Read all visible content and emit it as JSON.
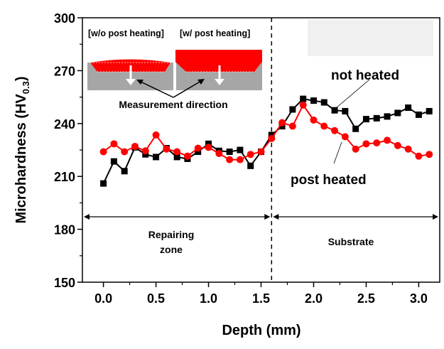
{
  "chart_data": {
    "type": "line",
    "title": "",
    "xlabel": "Depth (mm)",
    "ylabel_main": "Microhardness (HV",
    "ylabel_sub": "0.3",
    "ylabel_close": ")",
    "xlim": [
      -0.2,
      3.2
    ],
    "ylim": [
      150,
      300
    ],
    "xticks": [
      "0.0",
      "0.5",
      "1.0",
      "1.5",
      "2.0",
      "2.5",
      "3.0"
    ],
    "yticks": [
      "150",
      "180",
      "210",
      "240",
      "270",
      "300"
    ],
    "grid": false,
    "x": [
      0.0,
      0.1,
      0.2,
      0.3,
      0.4,
      0.5,
      0.6,
      0.7,
      0.8,
      0.9,
      1.0,
      1.1,
      1.2,
      1.3,
      1.4,
      1.5,
      1.6,
      1.7,
      1.8,
      1.9,
      2.0,
      2.1,
      2.2,
      2.3,
      2.4,
      2.5,
      2.6,
      2.7,
      2.8,
      2.9,
      3.0,
      3.1
    ],
    "series": [
      {
        "name": "not heated",
        "color": "#000000",
        "marker": "square",
        "values": [
          206,
          218.5,
          213,
          226.5,
          222.5,
          221,
          226,
          221,
          220,
          224,
          228.5,
          224.5,
          224,
          225,
          216,
          224,
          233.5,
          238.5,
          248,
          254,
          253,
          252,
          247.5,
          247,
          237,
          242.5,
          243,
          244,
          246,
          249,
          245,
          247
        ]
      },
      {
        "name": "post heated",
        "color": "#ff0000",
        "marker": "circle",
        "values": [
          224,
          228.5,
          224,
          227,
          224.5,
          233.5,
          225.5,
          224,
          221.5,
          226,
          226.5,
          223,
          219.5,
          219.5,
          222.5,
          224,
          231.5,
          240.5,
          238.5,
          250.5,
          242,
          238.5,
          236,
          232.5,
          225.5,
          228.5,
          229,
          230.5,
          227.5,
          225.5,
          221.5,
          222.5
        ]
      }
    ],
    "divider_x": 1.6,
    "annotations": {
      "zone1_line1": "Repairing",
      "zone1_line2": "zone",
      "zone2": "Substrate",
      "inset_left": "[w/o post heating]",
      "inset_right": "[w/ post heating]",
      "inset_caption": "Measurement direction"
    }
  }
}
